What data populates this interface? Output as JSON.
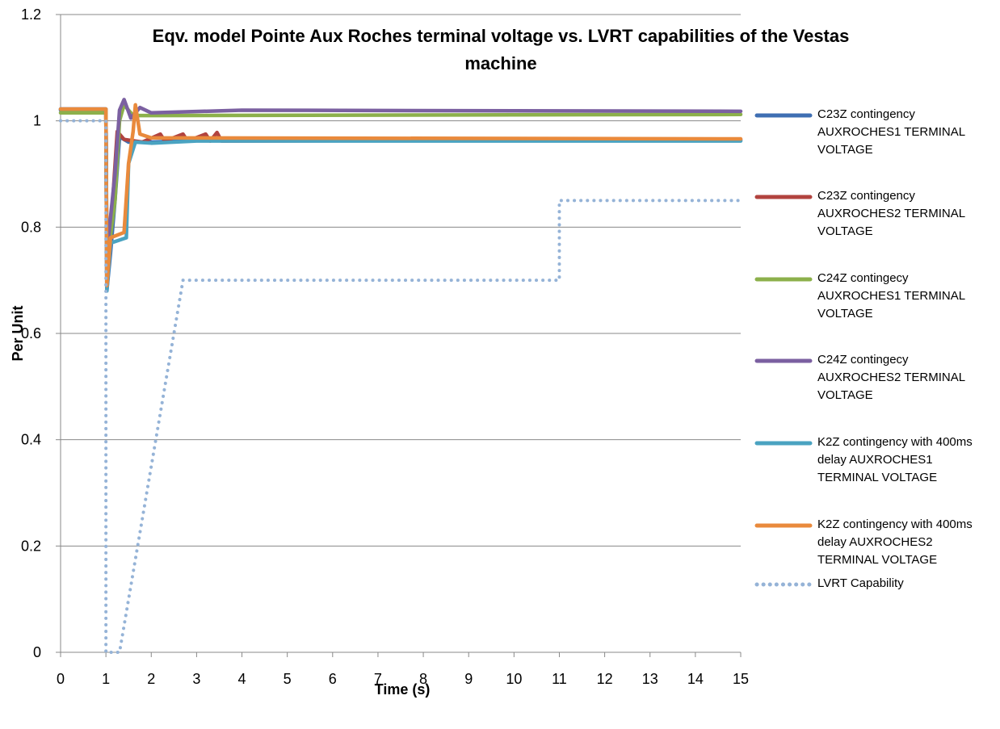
{
  "chart_data": {
    "type": "line",
    "title": "Eqv. model Pointe Aux Roches terminal voltage vs. LVRT capabilities of the Vestas machine",
    "xlabel": "Time (s)",
    "ylabel": "Per Unit",
    "xlim": [
      0,
      15
    ],
    "xticks": [
      0,
      1,
      2,
      3,
      4,
      5,
      6,
      7,
      8,
      9,
      10,
      11,
      12,
      13,
      14,
      15
    ],
    "ylim": [
      0,
      1.2
    ],
    "yticks": [
      0,
      0.2,
      0.4,
      0.6,
      0.8,
      1,
      1.2
    ],
    "grid": true,
    "legend": "right",
    "series": [
      {
        "name": "C23Z contingency AUXROCHES1 TERMINAL VOLTAGE",
        "color": "#3f6fb3",
        "style": "solid",
        "x": [
          0,
          1,
          1.02,
          1.1,
          1.2,
          1.3,
          1.5,
          2,
          3,
          15
        ],
        "values": [
          1.02,
          1.02,
          0.68,
          0.75,
          0.85,
          0.97,
          0.96,
          0.96,
          0.963,
          0.963
        ]
      },
      {
        "name": "C23Z contingency AUXROCHES2 TERMINAL VOLTAGE",
        "color": "#b2433f",
        "style": "solid",
        "x": [
          0,
          1,
          1.02,
          1.15,
          1.25,
          1.4,
          1.8,
          2.2,
          2.3,
          2.7,
          2.8,
          3.2,
          3.3,
          3.45,
          3.55,
          15
        ],
        "values": [
          1.022,
          1.022,
          0.7,
          0.85,
          0.98,
          0.965,
          0.96,
          0.975,
          0.962,
          0.975,
          0.962,
          0.975,
          0.962,
          0.978,
          0.962,
          0.965
        ]
      },
      {
        "name": "C24Z contingecy AUXROCHES1 TERMINAL VOLTAGE",
        "color": "#8cb04b",
        "style": "solid",
        "x": [
          0,
          1,
          1.02,
          1.2,
          1.3,
          1.4,
          1.6,
          2,
          15
        ],
        "values": [
          1.015,
          1.015,
          0.73,
          0.85,
          1,
          1.03,
          1.01,
          1.01,
          1.012
        ]
      },
      {
        "name": "C24Z contingecy AUXROCHES2 TERMINAL VOLTAGE",
        "color": "#7b60a1",
        "style": "solid",
        "x": [
          0,
          1,
          1.02,
          1.2,
          1.3,
          1.4,
          1.55,
          1.75,
          2,
          4,
          15
        ],
        "values": [
          1.022,
          1.022,
          0.75,
          0.9,
          1.02,
          1.04,
          1.005,
          1.025,
          1.015,
          1.02,
          1.018
        ]
      },
      {
        "name": "K2Z contingency with 400ms delay AUXROCHES1 TERMINAL VOLTAGE",
        "color": "#4aa3c1",
        "style": "solid",
        "x": [
          0,
          1,
          1.02,
          1.1,
          1.45,
          1.5,
          1.65,
          2,
          3,
          15
        ],
        "values": [
          1.022,
          1.022,
          0.68,
          0.77,
          0.78,
          0.92,
          0.96,
          0.958,
          0.962,
          0.962
        ]
      },
      {
        "name": "K2Z contingency with 400ms delay AUXROCHES2 TERMINAL VOLTAGE",
        "color": "#e98a3c",
        "style": "solid",
        "x": [
          0,
          1,
          1.02,
          1.1,
          1.4,
          1.5,
          1.6,
          1.65,
          1.75,
          2,
          15
        ],
        "values": [
          1.022,
          1.022,
          0.69,
          0.78,
          0.79,
          0.92,
          0.98,
          1.03,
          0.975,
          0.968,
          0.966
        ]
      },
      {
        "name": "LVRT Capability",
        "color": "#95b3d7",
        "style": "dotted",
        "x": [
          0,
          1,
          1,
          1.3,
          2.7,
          11,
          11,
          15
        ],
        "values": [
          1,
          1,
          0,
          0,
          0.7,
          0.7,
          0.85,
          0.85
        ]
      }
    ]
  }
}
